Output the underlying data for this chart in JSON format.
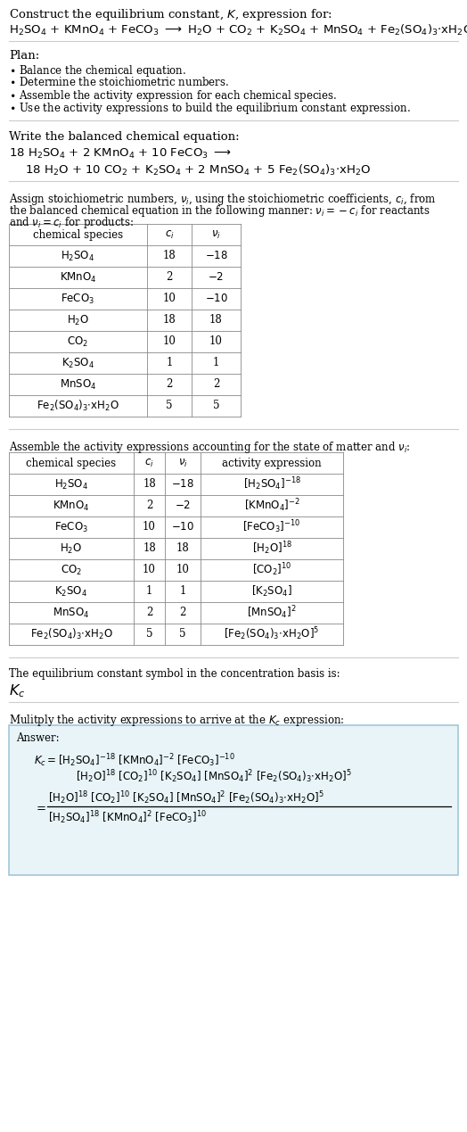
{
  "bg_color": "#ffffff",
  "answer_box_color": "#e8f4f8",
  "answer_box_border": "#a0c8d8",
  "text_color": "#000000",
  "font_size": 9.5,
  "small_font": 8.5,
  "table1_data": [
    [
      "$\\mathrm{H_2SO_4}$",
      "18",
      "$-18$"
    ],
    [
      "$\\mathrm{KMnO_4}$",
      "2",
      "$-2$"
    ],
    [
      "$\\mathrm{FeCO_3}$",
      "10",
      "$-10$"
    ],
    [
      "$\\mathrm{H_2O}$",
      "18",
      "18"
    ],
    [
      "$\\mathrm{CO_2}$",
      "10",
      "10"
    ],
    [
      "$\\mathrm{K_2SO_4}$",
      "1",
      "1"
    ],
    [
      "$\\mathrm{MnSO_4}$",
      "2",
      "2"
    ],
    [
      "$\\mathrm{Fe_2(SO_4)_3{\\cdot}xH_2O}$",
      "5",
      "5"
    ]
  ],
  "table2_data": [
    [
      "$\\mathrm{H_2SO_4}$",
      "18",
      "$-18$",
      "$[\\mathrm{H_2SO_4}]^{-18}$"
    ],
    [
      "$\\mathrm{KMnO_4}$",
      "2",
      "$-2$",
      "$[\\mathrm{KMnO_4}]^{-2}$"
    ],
    [
      "$\\mathrm{FeCO_3}$",
      "10",
      "$-10$",
      "$[\\mathrm{FeCO_3}]^{-10}$"
    ],
    [
      "$\\mathrm{H_2O}$",
      "18",
      "18",
      "$[\\mathrm{H_2O}]^{18}$"
    ],
    [
      "$\\mathrm{CO_2}$",
      "10",
      "10",
      "$[\\mathrm{CO_2}]^{10}$"
    ],
    [
      "$\\mathrm{K_2SO_4}$",
      "1",
      "1",
      "$[\\mathrm{K_2SO_4}]$"
    ],
    [
      "$\\mathrm{MnSO_4}$",
      "2",
      "2",
      "$[\\mathrm{MnSO_4}]^2$"
    ],
    [
      "$\\mathrm{Fe_2(SO_4)_3{\\cdot}xH_2O}$",
      "5",
      "5",
      "$[\\mathrm{Fe_2(SO_4)_3{\\cdot}xH_2O}]^5$"
    ]
  ]
}
